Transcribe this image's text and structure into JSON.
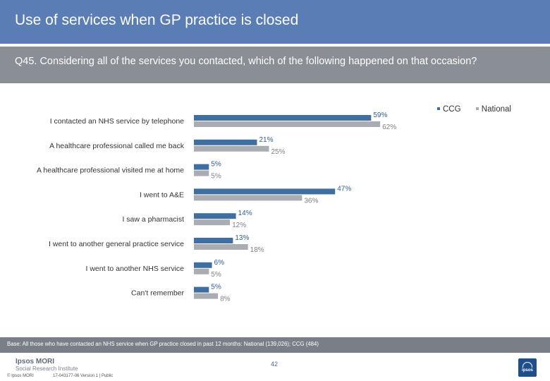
{
  "slide": {
    "title": "Use of services when GP practice is closed",
    "question": "Q45. Considering all of the services you contacted, which of the following happened on that occasion?",
    "base_note": "Base: All those who have contacted an NHS service when GP practice closed in past 12 months: National (139,026); CCG (484)",
    "copyright": "© Ipsos MORI",
    "job_ref": "17-043177-06 Version 1 | Public",
    "page_number": "42",
    "logo_line1": "Ipsos MORI",
    "logo_line2": "Social Research Institute",
    "logo_mark": "ipsos"
  },
  "colors": {
    "title_bar": "#5a7db5",
    "question_bar": "#8a8f96",
    "footer_bar": "#7a7f87",
    "ccg": "#3f6fa0",
    "national": "#a9adb3"
  },
  "chart_data": {
    "type": "bar",
    "orientation": "horizontal",
    "title": "",
    "xlabel": "",
    "ylabel": "",
    "xlim": [
      0,
      100
    ],
    "categories": [
      "I contacted an NHS service by telephone",
      "A healthcare professional called me back",
      "A healthcare professional visited me at home",
      "I went to A&E",
      "I saw a pharmacist",
      "I went to another general practice service",
      "I went to another NHS service",
      "Can't remember"
    ],
    "series": [
      {
        "name": "CCG",
        "values": [
          59,
          21,
          5,
          47,
          14,
          13,
          6,
          5
        ],
        "labels": [
          "59%",
          "21%",
          "5%",
          "47%",
          "14%",
          "13%",
          "6%",
          "5%"
        ]
      },
      {
        "name": "National",
        "values": [
          62,
          25,
          5,
          36,
          12,
          18,
          5,
          8
        ],
        "labels": [
          "62%",
          "25%",
          "5%",
          "36%",
          "12%",
          "18%",
          "5%",
          "8%"
        ]
      }
    ],
    "legend": [
      "CCG",
      "National"
    ],
    "legend_position": "top-right"
  }
}
